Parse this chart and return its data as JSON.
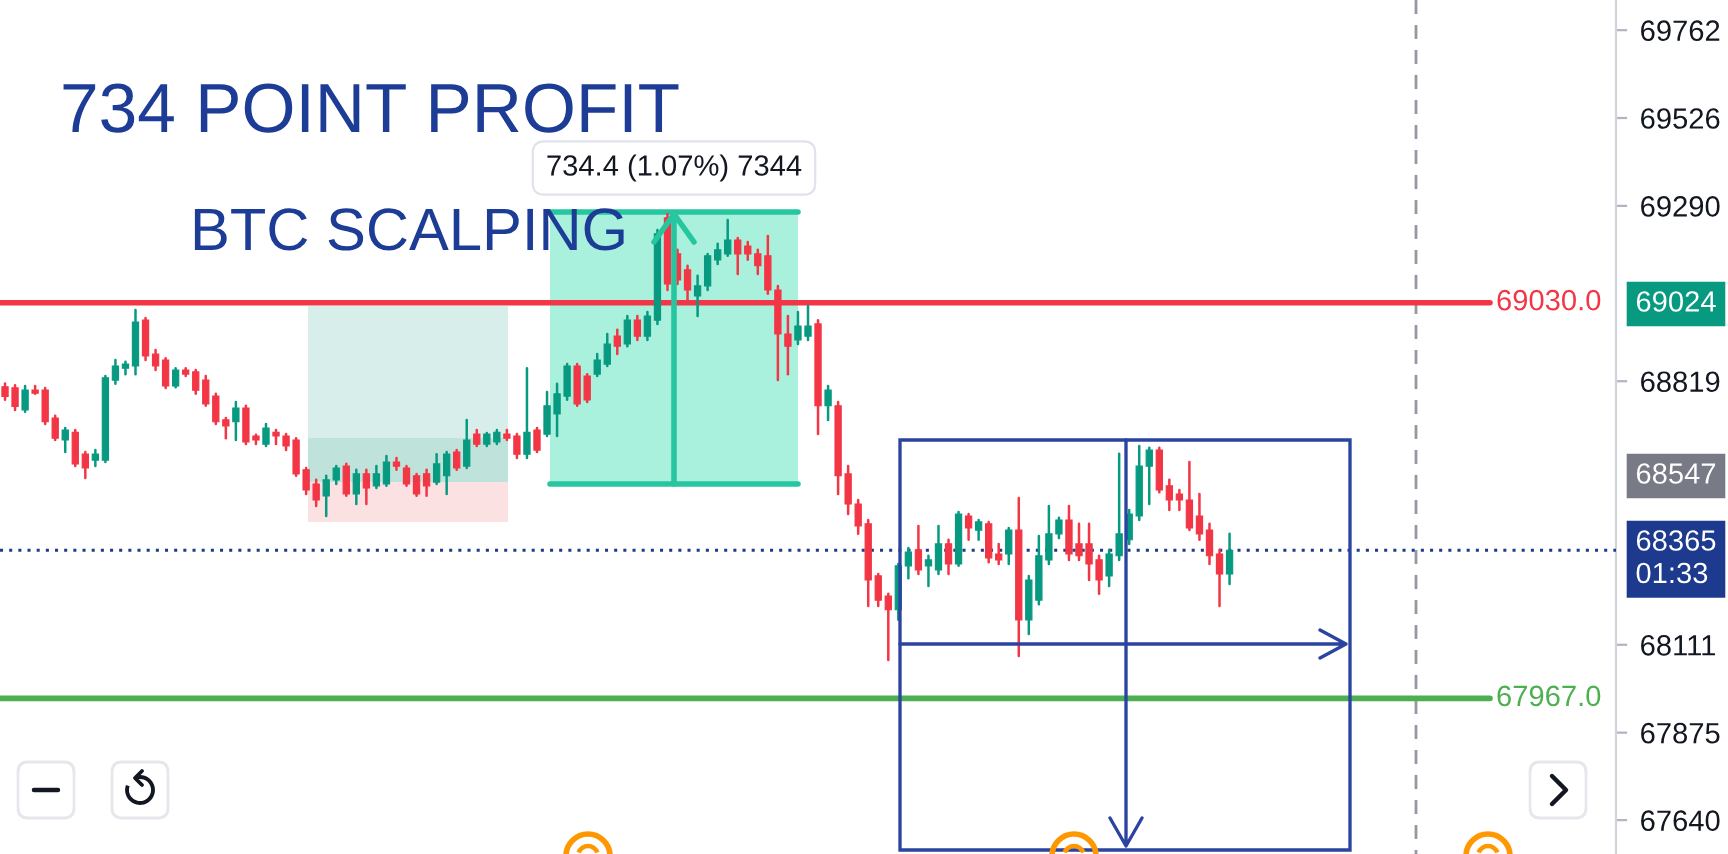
{
  "chart_data": {
    "type": "candlestick",
    "title": "734 POINT PROFIT",
    "subtitle": "BTC SCALPING",
    "categories": [
      null,
      null,
      null,
      null,
      null,
      null,
      null,
      null,
      null,
      null,
      null,
      null,
      null,
      null,
      null,
      null,
      null,
      null,
      null,
      null,
      null,
      null,
      null,
      null,
      null,
      null,
      null,
      null,
      null,
      null,
      null,
      null,
      null,
      null,
      null,
      null,
      null,
      null,
      null,
      null,
      null,
      null,
      null,
      null,
      null,
      null,
      null,
      null,
      null,
      null,
      null,
      null,
      null,
      null,
      null,
      null,
      null,
      null,
      null,
      null,
      null,
      null,
      null,
      null,
      null,
      null,
      null,
      null,
      null,
      null,
      null,
      null,
      null,
      null,
      null,
      null,
      null,
      null,
      null,
      null,
      null,
      null,
      null,
      null,
      null,
      null,
      null,
      null,
      null,
      null,
      null,
      null,
      null,
      null,
      null,
      null,
      null,
      null,
      null,
      null,
      null,
      null,
      null,
      null,
      null,
      null,
      null,
      null,
      null,
      null,
      null,
      null,
      null,
      null,
      null,
      null,
      null,
      null,
      null,
      null,
      null,
      null,
      null,
      null,
      null,
      null,
      null,
      null,
      null,
      null,
      null,
      null,
      null,
      null,
      null,
      null,
      null,
      null,
      null,
      null,
      null,
      null,
      null,
      null,
      null,
      null,
      null,
      null,
      null,
      null,
      null,
      null,
      null,
      null,
      null,
      null,
      null,
      null,
      null,
      null,
      null
    ],
    "ohlc": [
      [
        68804,
        68813,
        68769,
        68778
      ],
      [
        68801,
        68808,
        68742,
        68751
      ],
      [
        68742,
        68806,
        68737,
        68795
      ],
      [
        68795,
        68806,
        68785,
        68787
      ],
      [
        68795,
        68801,
        68704,
        68710
      ],
      [
        68720,
        68726,
        68661,
        68666
      ],
      [
        68661,
        68693,
        68629,
        68688
      ],
      [
        68682,
        68688,
        68591,
        68597
      ],
      [
        68623,
        68629,
        68559,
        68586
      ],
      [
        68607,
        68634,
        68591,
        68623
      ],
      [
        68607,
        68833,
        68602,
        68828
      ],
      [
        68822,
        68876,
        68812,
        68860
      ],
      [
        68854,
        68871,
        68838,
        68865
      ],
      [
        68860,
        69010,
        68838,
        68978
      ],
      [
        68983,
        68989,
        68876,
        68887
      ],
      [
        68892,
        68903,
        68849,
        68860
      ],
      [
        68876,
        68881,
        68801,
        68806
      ],
      [
        68806,
        68854,
        68803,
        68849
      ],
      [
        68849,
        68854,
        68833,
        68838
      ],
      [
        68844,
        68849,
        68785,
        68795
      ],
      [
        68822,
        68833,
        68753,
        68758
      ],
      [
        68779,
        68785,
        68704,
        68710
      ],
      [
        68715,
        68720,
        68666,
        68699
      ],
      [
        68710,
        68763,
        68661,
        68747
      ],
      [
        68747,
        68753,
        68650,
        68656
      ],
      [
        68672,
        68675,
        68650,
        68661
      ],
      [
        68650,
        68704,
        68645,
        68693
      ],
      [
        68682,
        68688,
        68650,
        68672
      ],
      [
        68672,
        68677,
        68634,
        68645
      ],
      [
        68661,
        68666,
        68565,
        68570
      ],
      [
        68581,
        68586,
        68516,
        68527
      ],
      [
        68543,
        68554,
        68484,
        68500
      ],
      [
        68511,
        68565,
        68457,
        68554
      ],
      [
        68554,
        68591,
        68543,
        68586
      ],
      [
        68591,
        68597,
        68511,
        68516
      ],
      [
        68516,
        68581,
        68489,
        68570
      ],
      [
        68570,
        68581,
        68489,
        68532
      ],
      [
        68538,
        68591,
        68532,
        68570
      ],
      [
        68543,
        68618,
        68538,
        68602
      ],
      [
        68602,
        68613,
        68581,
        68591
      ],
      [
        68586,
        68591,
        68538,
        68543
      ],
      [
        68565,
        68570,
        68511,
        68516
      ],
      [
        68570,
        68581,
        68511,
        68538
      ],
      [
        68548,
        68623,
        68543,
        68597
      ],
      [
        68565,
        68629,
        68516,
        68623
      ],
      [
        68629,
        68634,
        68581,
        68586
      ],
      [
        68591,
        68715,
        68586,
        68661
      ],
      [
        68677,
        68688,
        68645,
        68650
      ],
      [
        68650,
        68680,
        68645,
        68677
      ],
      [
        68656,
        68688,
        68650,
        68682
      ],
      [
        68677,
        68688,
        68661,
        68666
      ],
      [
        68672,
        68677,
        68613,
        68623
      ],
      [
        68623,
        68854,
        68613,
        68682
      ],
      [
        68688,
        68693,
        68629,
        68634
      ],
      [
        68677,
        68790,
        68672,
        68753
      ],
      [
        68731,
        68812,
        68672,
        68785
      ],
      [
        68779,
        68865,
        68769,
        68860
      ],
      [
        68860,
        68865,
        68753,
        68758
      ],
      [
        68833,
        68838,
        68763,
        68769
      ],
      [
        68838,
        68892,
        68833,
        68876
      ],
      [
        68865,
        68946,
        68860,
        68919
      ],
      [
        68940,
        68957,
        68892,
        68913
      ],
      [
        68919,
        68994,
        68913,
        68983
      ],
      [
        68983,
        68994,
        68930,
        68940
      ],
      [
        68940,
        69005,
        68930,
        68994
      ],
      [
        68983,
        69225,
        68973,
        69215
      ],
      [
        69258,
        69268,
        69064,
        69080
      ],
      [
        69161,
        69172,
        69080,
        69091
      ],
      [
        69118,
        69129,
        69037,
        69064
      ],
      [
        69048,
        69102,
        68994,
        69075
      ],
      [
        69075,
        69161,
        69064,
        69156
      ],
      [
        69145,
        69188,
        69134,
        69172
      ],
      [
        69161,
        69252,
        69156,
        69198
      ],
      [
        69198,
        69204,
        69107,
        69161
      ],
      [
        69182,
        69193,
        69145,
        69161
      ],
      [
        69161,
        69172,
        69107,
        69129
      ],
      [
        69156,
        69209,
        69054,
        69064
      ],
      [
        69064,
        69075,
        68822,
        68946
      ],
      [
        68946,
        68994,
        68838,
        68913
      ],
      [
        68930,
        69005,
        68919,
        68967
      ],
      [
        68940,
        69021,
        68930,
        68967
      ],
      [
        68973,
        68983,
        68677,
        68753
      ],
      [
        68753,
        68806,
        68715,
        68795
      ],
      [
        68753,
        68763,
        68516,
        68565
      ],
      [
        68570,
        68591,
        68462,
        68489
      ],
      [
        68489,
        68500,
        68409,
        68430
      ],
      [
        68436,
        68446,
        68215,
        68285
      ],
      [
        68296,
        68301,
        68215,
        68231
      ],
      [
        68242,
        68248,
        68070,
        68205
      ],
      [
        68205,
        68328,
        68178,
        68323
      ],
      [
        68323,
        68371,
        68290,
        68360
      ],
      [
        68366,
        68430,
        68301,
        68312
      ],
      [
        68323,
        68350,
        68269,
        68339
      ],
      [
        68312,
        68430,
        68301,
        68382
      ],
      [
        68382,
        68393,
        68301,
        68328
      ],
      [
        68328,
        68468,
        68323,
        68462
      ],
      [
        68457,
        68462,
        68393,
        68425
      ],
      [
        68419,
        68446,
        68393,
        68441
      ],
      [
        68436,
        68441,
        68333,
        68344
      ],
      [
        68355,
        68382,
        68328,
        68339
      ],
      [
        68355,
        68425,
        68328,
        68419
      ],
      [
        68419,
        68505,
        68081,
        68178
      ],
      [
        68178,
        68296,
        68140,
        68285
      ],
      [
        68231,
        68403,
        68220,
        68350
      ],
      [
        68339,
        68484,
        68328,
        68409
      ],
      [
        68409,
        68452,
        68398,
        68446
      ],
      [
        68446,
        68484,
        68339,
        68355
      ],
      [
        68382,
        68436,
        68339,
        68350
      ],
      [
        68382,
        68436,
        68285,
        68328
      ],
      [
        68339,
        68350,
        68248,
        68285
      ],
      [
        68296,
        68366,
        68269,
        68355
      ],
      [
        68350,
        68624,
        68339,
        68409
      ],
      [
        68393,
        68473,
        68382,
        68462
      ],
      [
        68457,
        68645,
        68446,
        68591
      ],
      [
        68591,
        68640,
        68489,
        68634
      ],
      [
        68634,
        68640,
        68521,
        68527
      ],
      [
        68538,
        68554,
        68473,
        68500
      ],
      [
        68516,
        68527,
        68473,
        68500
      ],
      [
        68500,
        68602,
        68419,
        68425
      ],
      [
        68457,
        68516,
        68393,
        68409
      ],
      [
        68419,
        68436,
        68328,
        68350
      ],
      [
        68355,
        68366,
        68215,
        68301
      ],
      [
        68301,
        68409,
        68274,
        68365
      ],
      null,
      null,
      null,
      null,
      null,
      null,
      null,
      null,
      null,
      null,
      null,
      null,
      null,
      null,
      null,
      null,
      null,
      null,
      null,
      null,
      null,
      null,
      null,
      null,
      null,
      null,
      null,
      null,
      null,
      null,
      null,
      null,
      null,
      null,
      null,
      null,
      null,
      null
    ],
    "colors": [
      "#f23645",
      "#f23645",
      "#089981",
      "#f23645",
      "#f23645",
      "#f23645",
      "#089981",
      "#f23645",
      "#f23645",
      "#089981",
      "#089981",
      "#089981",
      "#089981",
      "#089981",
      "#f23645",
      "#f23645",
      "#f23645",
      "#089981",
      "#f23645",
      "#f23645",
      "#f23645",
      "#f23645",
      "#f23645",
      "#089981",
      "#f23645",
      "#f23645",
      "#089981",
      "#f23645",
      "#f23645",
      "#f23645",
      "#f23645",
      "#f23645",
      "#089981",
      "#089981",
      "#f23645",
      "#089981",
      "#f23645",
      "#089981",
      "#089981",
      "#f23645",
      "#f23645",
      "#f23645",
      "#f23645",
      "#089981",
      "#089981",
      "#f23645",
      "#089981",
      "#f23645",
      "#089981",
      "#089981",
      "#f23645",
      "#f23645",
      "#089981",
      "#f23645",
      "#089981",
      "#089981",
      "#089981",
      "#f23645",
      "#f23645",
      "#089981",
      "#089981",
      "#f23645",
      "#089981",
      "#f23645",
      "#089981",
      "#089981",
      "#f23645",
      "#f23645",
      "#f23645",
      "#089981",
      "#089981",
      "#089981",
      "#089981",
      "#f23645",
      "#f23645",
      "#f23645",
      "#f23645",
      "#f23645",
      "#f23645",
      "#089981",
      "#089981",
      "#f23645",
      "#089981",
      "#f23645",
      "#f23645",
      "#f23645",
      "#f23645",
      "#f23645",
      "#f23645",
      "#089981",
      "#089981",
      "#f23645",
      "#089981",
      "#089981",
      "#f23645",
      "#089981",
      "#f23645",
      "#089981",
      "#f23645",
      "#f23645",
      "#089981",
      "#f23645",
      "#089981",
      "#089981",
      "#089981",
      "#089981",
      "#f23645",
      "#f23645",
      "#f23645",
      "#f23645",
      "#089981",
      "#089981",
      "#089981",
      "#089981",
      "#089981",
      "#f23645",
      "#f23645",
      "#f23645",
      "#f23645",
      "#f23645",
      "#f23645",
      "#f23645",
      "#089981",
      null,
      null,
      null,
      null,
      null,
      null,
      null,
      null,
      null,
      null,
      null,
      null,
      null,
      null,
      null,
      null,
      null,
      null,
      null,
      null,
      null,
      null,
      null,
      null,
      null,
      null,
      null,
      null,
      null,
      null,
      null,
      null,
      null,
      null,
      null,
      null,
      null,
      null
    ],
    "ylim": [
      67549,
      69843
    ],
    "yticks": [
      67640,
      67875,
      68111,
      68819,
      69290,
      69526,
      69762
    ],
    "tick_labels": "y",
    "ref_lines": [
      {
        "axis": "y",
        "value": 69030,
        "label": "69030.0",
        "color": "#f23645",
        "line_style": "solid"
      },
      {
        "axis": "y",
        "value": 67967,
        "label": "67967.0",
        "color": "#4caf50",
        "line_style": "solid"
      },
      {
        "axis": "y",
        "value": 68365,
        "label": "68365\n01:33",
        "color": "#1e3a8f",
        "line_style": "dotted"
      }
    ],
    "annotations": [
      "734.4 (1.07%) 7344",
      "69024",
      "68547"
    ]
  }
}
